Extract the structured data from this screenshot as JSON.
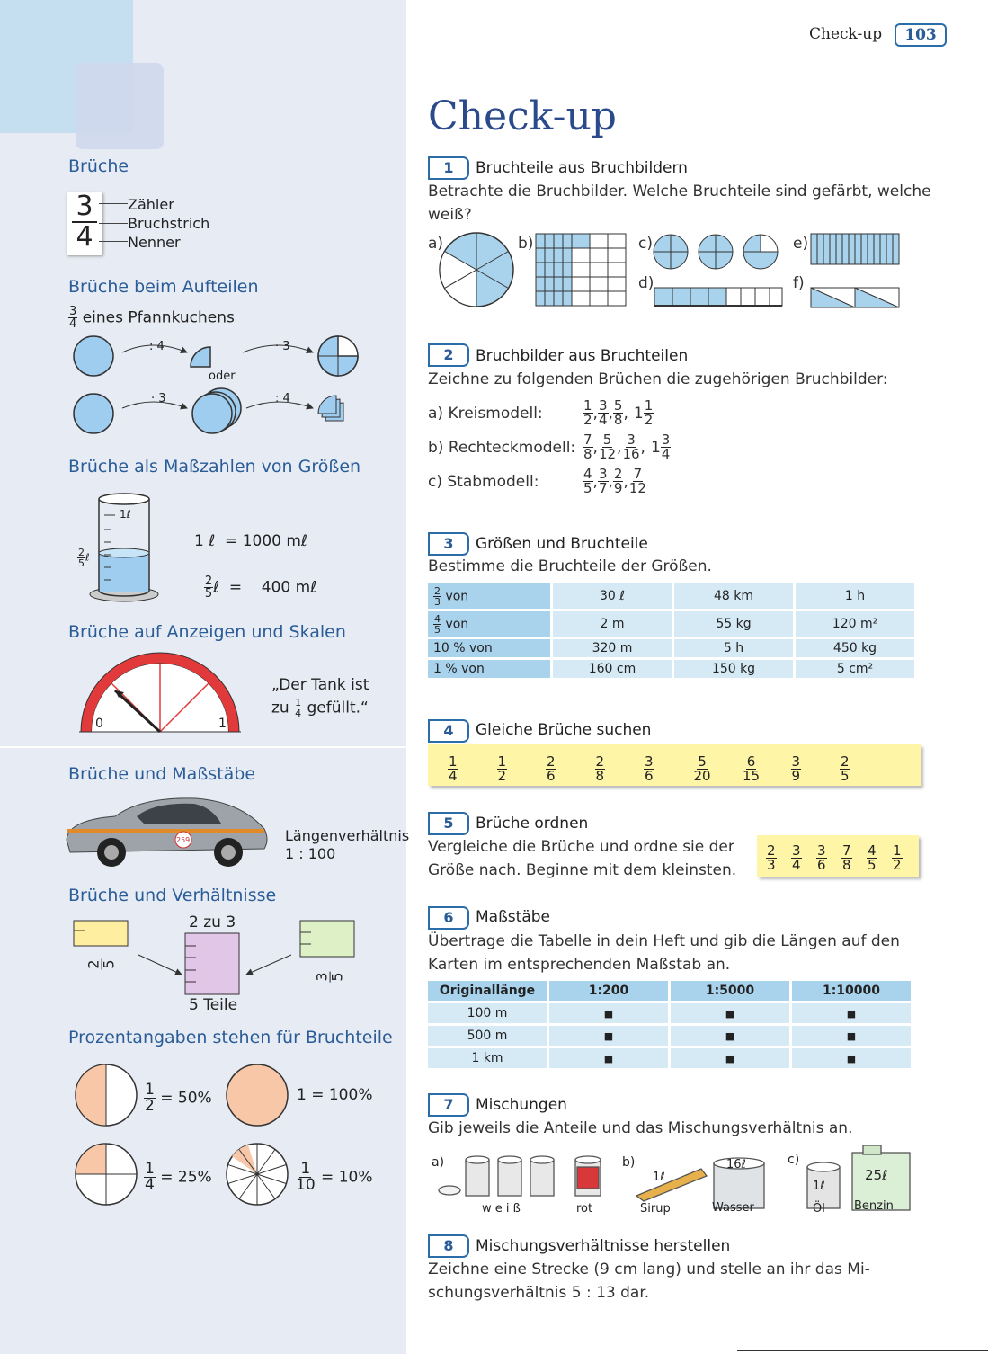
{
  "header": {
    "label": "Check-up",
    "page_number": "103"
  },
  "sidebar": {
    "s1": {
      "heading": "Brüche",
      "num": "3",
      "den": "4",
      "labels": [
        "Zähler",
        "Bruchstrich",
        "Nenner"
      ]
    },
    "s2": {
      "heading": "Brüche beim Aufteilen",
      "caption_num": "3",
      "caption_den": "4",
      "caption": "eines Pfannkuchens",
      "op_div4": ": 4",
      "op_mul3": "· 3",
      "op_mul3b": "· 3",
      "op_div4b": ": 4",
      "oder": "oder"
    },
    "s3": {
      "heading": "Brüche als Maßzahlen von Größen",
      "cyl_label": "1ℓ",
      "side_num": "2",
      "side_den": "5",
      "side_unit": "ℓ",
      "eq1": "1 ℓ  = 1000 mℓ",
      "eq2_num": "2",
      "eq2_den": "5",
      "eq2": "ℓ  =    400 mℓ"
    },
    "s4": {
      "heading": "Brüche auf Anzeigen und Skalen",
      "zero": "0",
      "one": "1",
      "quote1": "„Der Tank ist",
      "quote2a": "zu",
      "quote_num": "1",
      "quote_den": "4",
      "quote2b": "gefüllt.“"
    },
    "s5": {
      "heading": "Brüche und Maßstäbe",
      "ratio_label": "Längenverhältnis",
      "ratio": "1 : 100",
      "car_number": "259"
    },
    "s6": {
      "heading": "Brüche und Verhältnisse",
      "ratio": "2 zu 3",
      "parts": "5 Teile",
      "f1_num": "2",
      "f1_den": "5",
      "f2_num": "3",
      "f2_den": "5"
    },
    "s7": {
      "heading": "Prozentangaben stehen für Bruchteile",
      "p1_num": "1",
      "p1_den": "2",
      "p1": "= 50%",
      "p2": "1 = 100%",
      "p3_num": "1",
      "p3_den": "4",
      "p3": "= 25%",
      "p4_num": "1",
      "p4_den": "10",
      "p4": "= 10%"
    }
  },
  "main": {
    "title": "Check-up",
    "t1": {
      "num": "1",
      "title": "Bruchteile aus Bruchbildern",
      "text": "Betrachte die Bruchbilder. Welche Bruchteile sind gefärbt, welche weiß?",
      "labels": [
        "a)",
        "b)",
        "c)",
        "d)",
        "e)",
        "f)"
      ]
    },
    "t2": {
      "num": "2",
      "title": "Bruchbilder aus Bruchteilen",
      "text": "Zeichne zu folgenden Brüchen die zugehörigen Bruchbilder:",
      "rows": [
        {
          "label": "a)  Kreismodell:",
          "fracs": [
            [
              "1",
              "2"
            ],
            [
              "3",
              "4"
            ],
            [
              "5",
              "8"
            ]
          ],
          "mixed": [
            "1",
            "1",
            "2"
          ]
        },
        {
          "label": "b)  Rechteckmodell:",
          "fracs": [
            [
              "7",
              "8"
            ],
            [
              "5",
              "12"
            ],
            [
              "3",
              "16"
            ]
          ],
          "mixed": [
            "1",
            "3",
            "4"
          ]
        },
        {
          "label": "c)  Stabmodell:",
          "fracs": [
            [
              "4",
              "5"
            ],
            [
              "3",
              "7"
            ],
            [
              "2",
              "9"
            ],
            [
              "7",
              "12"
            ]
          ],
          "mixed": null
        }
      ]
    },
    "t3": {
      "num": "3",
      "title": "Größen und Bruchteile",
      "text": "Bestimme die Bruchteile der Größen.",
      "rows": [
        {
          "head_num": "2",
          "head_den": "3",
          "head": "von",
          "cells": [
            "30 ℓ",
            "48 km",
            "1 h"
          ]
        },
        {
          "head_num": "4",
          "head_den": "5",
          "head": "von",
          "cells": [
            "2 m",
            "55 kg",
            "120 m²"
          ]
        },
        {
          "head_num": "",
          "head_den": "",
          "head": "10 % von",
          "cells": [
            "320 m",
            "5 h",
            "450 kg"
          ]
        },
        {
          "head_num": "",
          "head_den": "",
          "head": "1 % von",
          "cells": [
            "160 cm",
            "150 kg",
            "5 cm²"
          ]
        }
      ]
    },
    "t4": {
      "num": "4",
      "title": "Gleiche Brüche suchen",
      "fracs": [
        [
          "1",
          "4"
        ],
        [
          "1",
          "2"
        ],
        [
          "2",
          "6"
        ],
        [
          "2",
          "8"
        ],
        [
          "3",
          "6"
        ],
        [
          "5",
          "20"
        ],
        [
          "6",
          "15"
        ],
        [
          "3",
          "9"
        ],
        [
          "2",
          "5"
        ]
      ]
    },
    "t5": {
      "num": "5",
      "title": "Brüche ordnen",
      "text": "Vergleiche die Brüche und ordne sie der Größe nach. Beginne mit dem kleinsten.",
      "fracs": [
        [
          "2",
          "3"
        ],
        [
          "3",
          "4"
        ],
        [
          "3",
          "6"
        ],
        [
          "7",
          "8"
        ],
        [
          "4",
          "5"
        ],
        [
          "1",
          "2"
        ]
      ]
    },
    "t6": {
      "num": "6",
      "title": "Maßstäbe",
      "text": "Übertrage die Tabelle in dein Heft und gib die Längen auf den Karten im entsprechenden Maßstab an.",
      "headers": [
        "Originallänge",
        "1:200",
        "1:5000",
        "1:10000"
      ],
      "rows": [
        [
          "100 m",
          "■",
          "■",
          "■"
        ],
        [
          "500 m",
          "■",
          "■",
          "■"
        ],
        [
          "1 km",
          "■",
          "■",
          "■"
        ]
      ]
    },
    "t7": {
      "num": "7",
      "title": "Mischungen",
      "text": "Gib jeweils die Anteile und das Mischungsverhältnis an.",
      "labels": {
        "a": "a)",
        "b": "b)",
        "c": "c)",
        "weiss": "w e i ß",
        "rot": "rot",
        "sirup": "Sirup",
        "wasser": "Wasser",
        "oel": "Öl",
        "benzin": "Benzin",
        "l1": "1ℓ",
        "l16": "16ℓ",
        "l1b": "1ℓ",
        "l25": "25ℓ"
      }
    },
    "t8": {
      "num": "8",
      "title": "Mischungsverhältnisse herstellen",
      "text1": "Zeichne eine Strecke (9 cm lang) und stelle an ihr das Mi-",
      "text2": "schungsverhältnis 5 : 13 dar."
    }
  },
  "colors": {
    "accent": "#2a5c97",
    "sidebar_bg": "#e7ebf4",
    "light_blue": "#a9d3ec",
    "yellow": "#fff5a6"
  }
}
